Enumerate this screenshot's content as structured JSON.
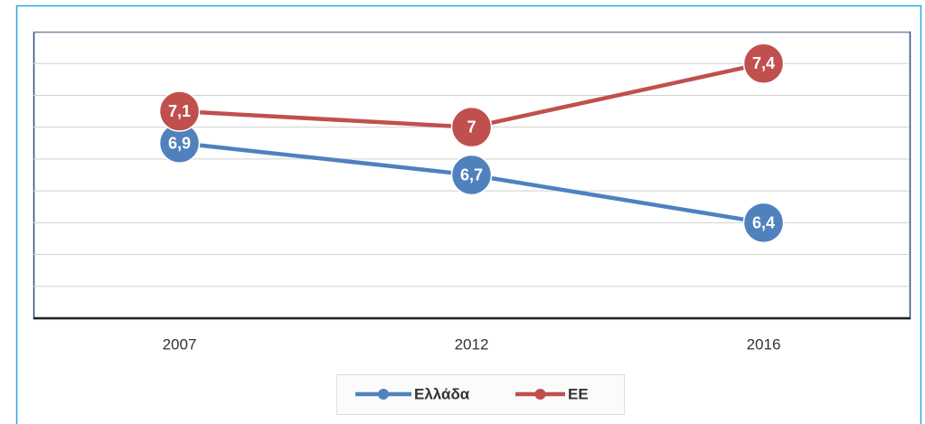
{
  "chart_data": {
    "type": "line",
    "categories": [
      "2007",
      "2012",
      "2016"
    ],
    "series": [
      {
        "name": "Ελλάδα",
        "color": "#4f81bd",
        "values": [
          6.9,
          6.7,
          6.4
        ],
        "value_labels": [
          "6,9",
          "6,7",
          "6,4"
        ]
      },
      {
        "name": "ΕΕ",
        "color": "#c0504d",
        "values": [
          7.1,
          7,
          7.4
        ],
        "value_labels": [
          "7,1",
          "7",
          "7,4"
        ]
      }
    ],
    "ylim": [
      5.8,
      7.6
    ],
    "yticks": [
      5.8,
      6,
      6.2,
      6.4,
      6.6,
      6.8,
      7,
      7.2,
      7.4,
      7.6
    ],
    "grid": true
  }
}
